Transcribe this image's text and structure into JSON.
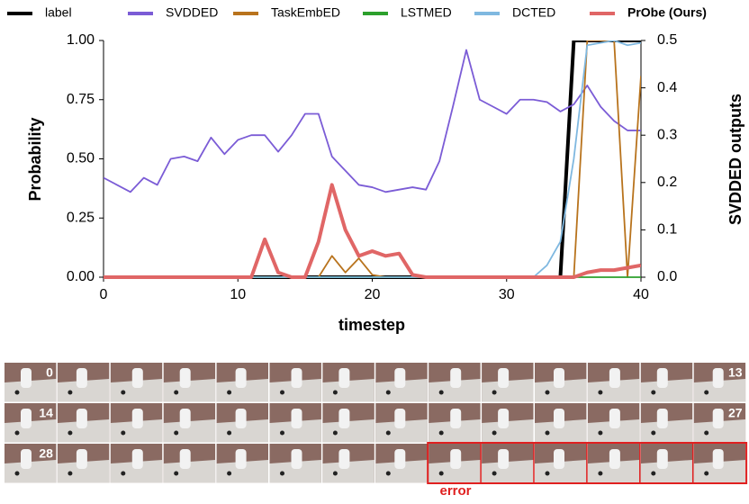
{
  "chart_data": {
    "type": "line",
    "x_label": "timestep",
    "y_label": "Probability",
    "y2_label": "SVDDED outputs",
    "x": [
      0,
      1,
      2,
      3,
      4,
      5,
      6,
      7,
      8,
      9,
      10,
      11,
      12,
      13,
      14,
      15,
      16,
      17,
      18,
      19,
      20,
      21,
      22,
      23,
      24,
      25,
      26,
      27,
      28,
      29,
      30,
      31,
      32,
      33,
      34,
      35,
      36,
      37,
      38,
      39,
      40
    ],
    "xlim": [
      0,
      40
    ],
    "xticks": [
      0,
      10,
      20,
      30,
      40
    ],
    "ylim": [
      0,
      1
    ],
    "yticks": [
      {
        "value": 0,
        "label": "0.00"
      },
      {
        "value": 0.25,
        "label": "0.25"
      },
      {
        "value": 0.5,
        "label": "0.50"
      },
      {
        "value": 0.75,
        "label": "0.75"
      },
      {
        "value": 1,
        "label": "1.00"
      }
    ],
    "y2lim": [
      0,
      0.5
    ],
    "y2ticks": [
      {
        "value": 0,
        "label": "0.0"
      },
      {
        "value": 0.1,
        "label": "0.1"
      },
      {
        "value": 0.2,
        "label": "0.2"
      },
      {
        "value": 0.3,
        "label": "0.3"
      },
      {
        "value": 0.4,
        "label": "0.4"
      },
      {
        "value": 0.5,
        "label": "0.5"
      }
    ],
    "grid": false,
    "series": [
      {
        "name": "label",
        "color": "#000000",
        "values": [
          0,
          0,
          0,
          0,
          0,
          0,
          0,
          0,
          0,
          0,
          0,
          0,
          0,
          0,
          0,
          0,
          0,
          0,
          0,
          0,
          0,
          0,
          0,
          0,
          0,
          0,
          0,
          0,
          0,
          0,
          0,
          0,
          0,
          0,
          0,
          1,
          1,
          1,
          1,
          1,
          1
        ]
      },
      {
        "name": "SVDDED",
        "color": "#7b5cd6",
        "axis": "y2",
        "values": [
          0.21,
          0.195,
          0.18,
          0.21,
          0.195,
          0.25,
          0.255,
          0.245,
          0.295,
          0.26,
          0.29,
          0.3,
          0.3,
          0.265,
          0.3,
          0.345,
          0.345,
          0.255,
          0.225,
          0.195,
          0.19,
          0.18,
          0.185,
          0.19,
          0.185,
          0.245,
          0.36,
          0.48,
          0.375,
          0.36,
          0.345,
          0.375,
          0.375,
          0.37,
          0.35,
          0.365,
          0.405,
          0.36,
          0.33,
          0.31,
          0.31
        ]
      },
      {
        "name": "TaskEmbED",
        "color": "#b8731d",
        "values": [
          0,
          0,
          0,
          0,
          0,
          0,
          0,
          0,
          0,
          0,
          0,
          0,
          0,
          0,
          0,
          0,
          0,
          0.09,
          0.02,
          0.08,
          0.01,
          0,
          0,
          0,
          0,
          0,
          0,
          0,
          0,
          0,
          0,
          0,
          0,
          0,
          0,
          0,
          1,
          1,
          1,
          0,
          0.85
        ]
      },
      {
        "name": "LSTMED",
        "color": "#2ca02c",
        "values": [
          0,
          0,
          0,
          0,
          0,
          0,
          0,
          0,
          0,
          0,
          0,
          0,
          0,
          0,
          0,
          0,
          0,
          0,
          0,
          0,
          0,
          0,
          0,
          0,
          0,
          0,
          0,
          0,
          0,
          0,
          0,
          0,
          0,
          0,
          0,
          0,
          0,
          0,
          0,
          0,
          0
        ]
      },
      {
        "name": "DCTED",
        "color": "#7fb8e0",
        "values": [
          0,
          0,
          0,
          0,
          0,
          0,
          0,
          0,
          0,
          0,
          0,
          0,
          0,
          0,
          0,
          0,
          0,
          0,
          0,
          0,
          0,
          0,
          0,
          0,
          0,
          0,
          0,
          0,
          0,
          0,
          0,
          0,
          0,
          0.05,
          0.15,
          0.5,
          0.98,
          0.99,
          1,
          0.98,
          0.99
        ]
      },
      {
        "name": "PrObe (Ours)",
        "color": "#e06666",
        "values": [
          0,
          0,
          0,
          0,
          0,
          0,
          0,
          0,
          0,
          0,
          0,
          0,
          0.16,
          0.02,
          0,
          0,
          0.15,
          0.39,
          0.2,
          0.09,
          0.11,
          0.09,
          0.1,
          0.01,
          0,
          0,
          0,
          0,
          0,
          0,
          0,
          0,
          0,
          0,
          0,
          0,
          0.02,
          0.03,
          0.03,
          0.04,
          0.05
        ]
      }
    ]
  },
  "frame_strip": {
    "labels": [
      "0",
      "13",
      "14",
      "27",
      "28"
    ],
    "error_label": "error"
  }
}
